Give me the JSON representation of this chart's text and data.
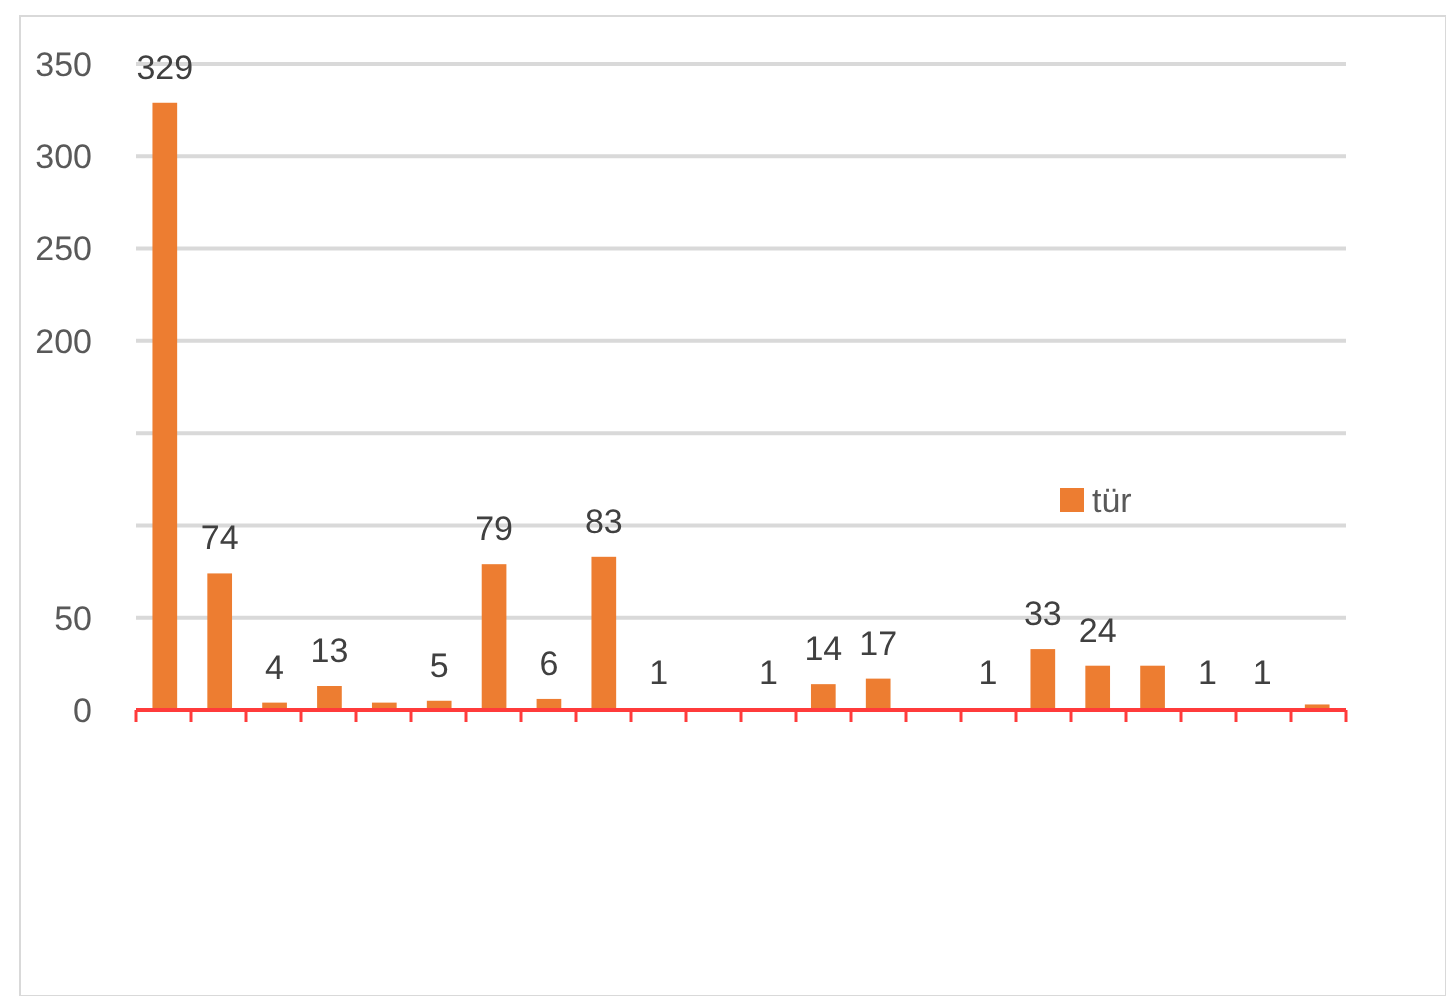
{
  "chart_data": {
    "type": "bar",
    "categories": [
      null,
      null,
      null,
      null,
      null,
      null,
      null,
      null,
      null,
      null,
      null,
      null,
      null,
      null,
      null,
      null,
      null,
      null,
      null,
      null,
      null,
      null
    ],
    "series": [
      {
        "name": "tür",
        "color": "#ed7d31",
        "values": [
          329,
          74,
          4,
          13,
          4,
          5,
          79,
          6,
          83,
          1,
          0,
          1,
          14,
          17,
          0,
          1,
          33,
          24,
          24,
          1,
          1,
          3
        ],
        "value_labels": [
          "329",
          "74",
          "4",
          "13",
          null,
          "5",
          "79",
          "6",
          "83",
          "1",
          null,
          "1",
          "14",
          "17",
          null,
          "1",
          "33",
          "24",
          null,
          "1",
          "1",
          null
        ]
      }
    ],
    "ylim": [
      0,
      350
    ],
    "yticks": [
      0,
      50,
      {
        "value": 100,
        "label": null
      },
      {
        "value": 150,
        "label": null
      },
      200,
      250,
      300,
      350
    ],
    "grid": "y",
    "legend": "right"
  }
}
